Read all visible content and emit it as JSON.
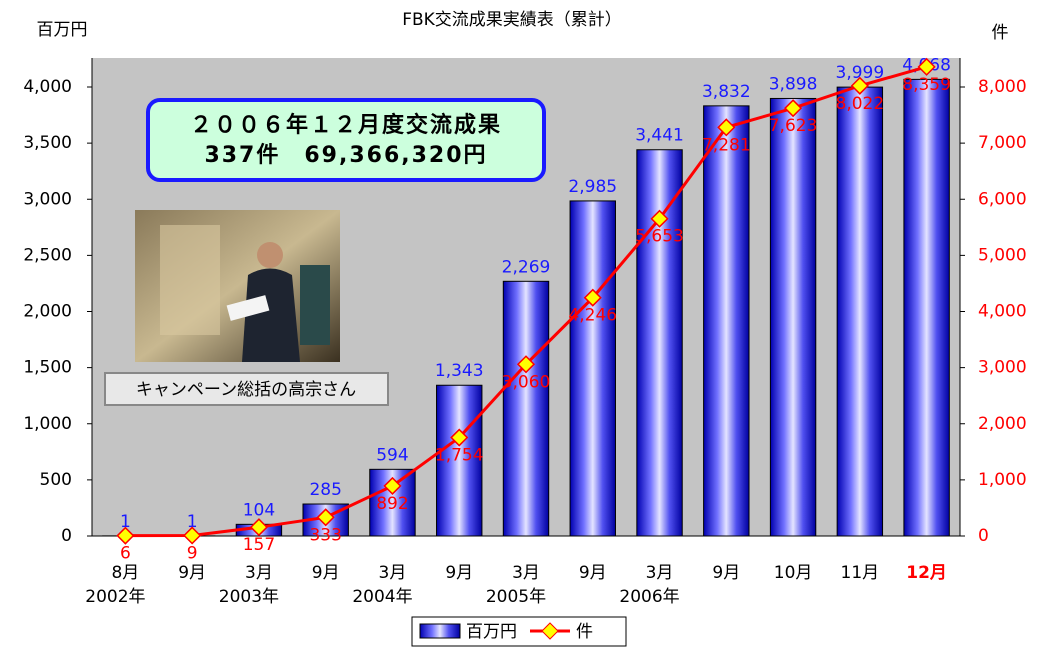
{
  "chart_data": {
    "type": "bar_line",
    "title": "FBK交流成果実績表（累計）",
    "y_label": "百万円",
    "y2_label": "件",
    "categories": [
      [
        "8月",
        "2002年"
      ],
      [
        "9月"
      ],
      [
        "3月",
        "2003年"
      ],
      [
        "9月"
      ],
      [
        "3月",
        "2004年"
      ],
      [
        "9月"
      ],
      [
        "3月",
        "2005年"
      ],
      [
        "9月"
      ],
      [
        "3月",
        "2006年"
      ],
      [
        "9月"
      ],
      [
        "10月"
      ],
      [
        "11月"
      ],
      [
        "12月"
      ]
    ],
    "series": [
      {
        "name": "百万円",
        "type": "bar",
        "color": "#2020e0",
        "values": [
          1,
          1,
          104,
          285,
          594,
          1343,
          2269,
          2985,
          3441,
          3832,
          3898,
          3999,
          4068
        ],
        "value_labels": [
          "1",
          "1",
          "104",
          "285",
          "594",
          "1,343",
          "2,269",
          "2,985",
          "3,441",
          "3,832",
          "3,898",
          "3,999",
          "4,068"
        ]
      },
      {
        "name": "件",
        "type": "line",
        "axis": "y2",
        "color": "#ff0000",
        "values": [
          6,
          9,
          157,
          333,
          892,
          1754,
          3060,
          4246,
          5653,
          7281,
          7623,
          8022,
          8359
        ],
        "value_labels": [
          "6",
          "9",
          "157",
          "333",
          "892",
          "1,754",
          "3,060",
          "4,246",
          "5,653",
          "7,281",
          "7,623",
          "8,022",
          "8,359"
        ]
      }
    ],
    "ylim": [
      0,
      4000
    ],
    "yticks": [
      0,
      500,
      {
        "value": 1000,
        "label": "1,000"
      },
      {
        "value": 1500,
        "label": "1,500"
      },
      {
        "value": 2000,
        "label": "2,000"
      },
      {
        "value": 2500,
        "label": "2,500"
      },
      {
        "value": 3000,
        "label": "3,000"
      },
      {
        "value": 3500,
        "label": "3,500"
      },
      {
        "value": 4000,
        "label": "4,000"
      }
    ],
    "y2lim": [
      0,
      8000
    ],
    "y2ticks": [
      0,
      {
        "value": 1000,
        "label": "1,000"
      },
      {
        "value": 2000,
        "label": "2,000"
      },
      {
        "value": 3000,
        "label": "3,000"
      },
      {
        "value": 4000,
        "label": "4,000"
      },
      {
        "value": 5000,
        "label": "5,000"
      },
      {
        "value": 6000,
        "label": "6,000"
      },
      {
        "value": 7000,
        "label": "7,000"
      },
      {
        "value": 8000,
        "label": "8,000"
      }
    ],
    "annotations": [
      "２００６年１２月度交流成果",
      "337件　69,366,320円",
      "キャンペーン総括の高宗さん"
    ],
    "grid": false,
    "legend": "bottom"
  }
}
